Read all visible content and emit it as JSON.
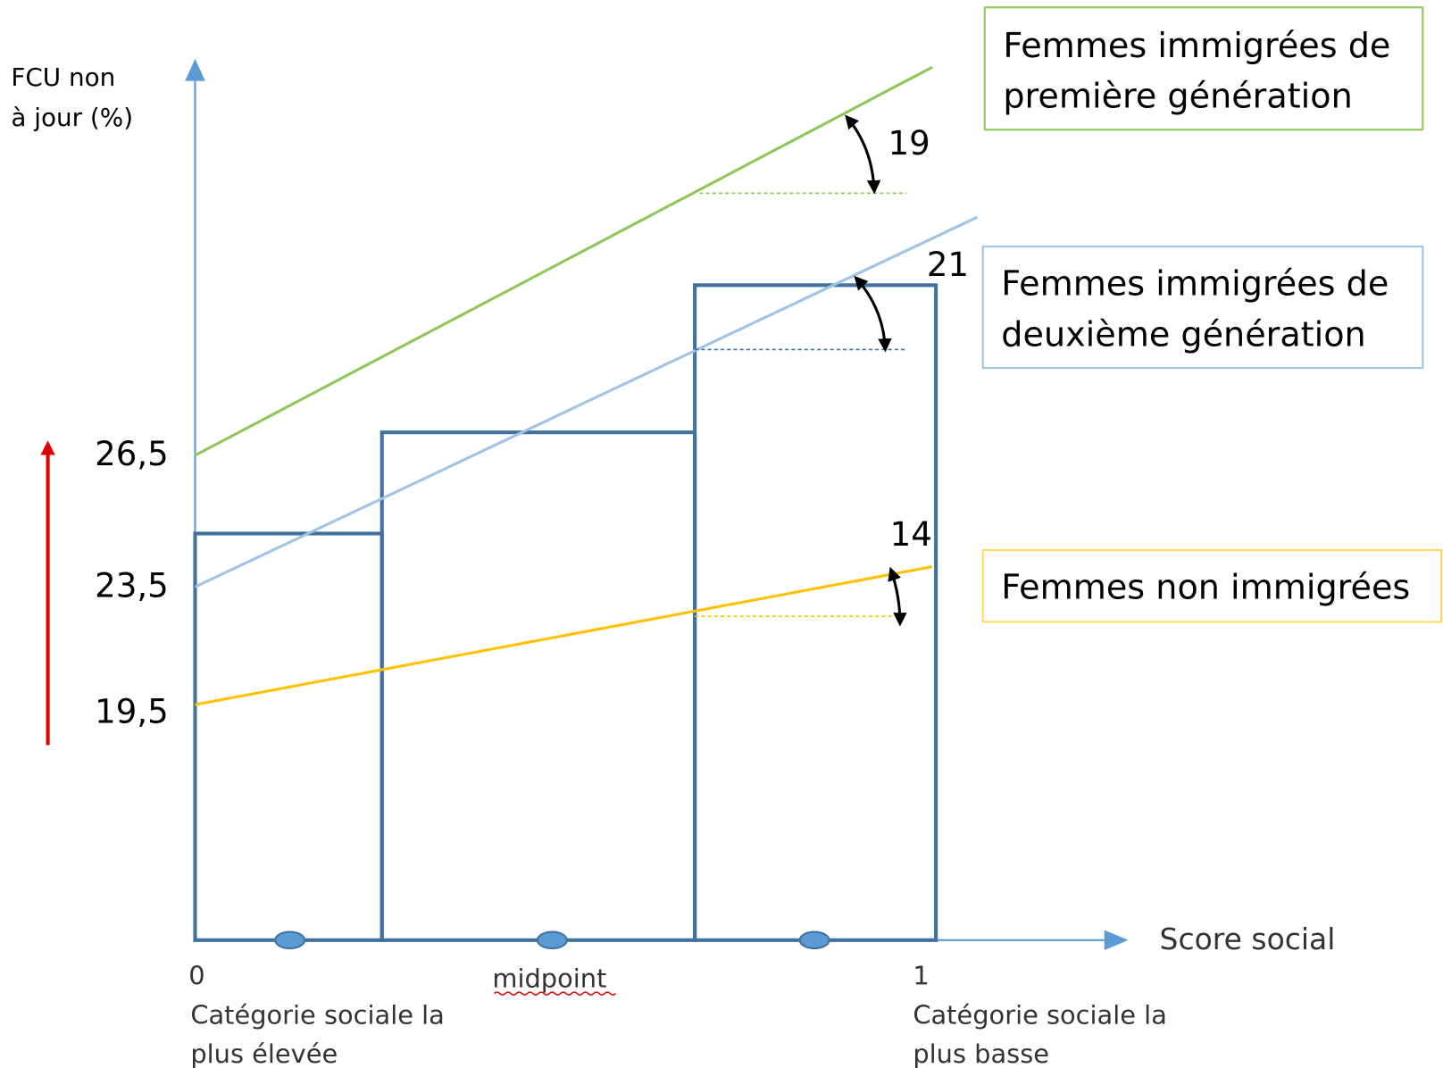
{
  "y_axis": {
    "label_lines": [
      "FCU non",
      "à jour (%)"
    ],
    "values": [
      "26,5",
      "23,5",
      "19,5"
    ]
  },
  "legend": [
    {
      "lines": [
        "Femmes immigrées de",
        "première génération"
      ]
    },
    {
      "lines": [
        "Femmes immigrées de",
        "deuxième génération"
      ]
    },
    {
      "lines": [
        "Femmes non immigrées"
      ]
    }
  ],
  "gaps": [
    "19",
    "21",
    "14"
  ],
  "x_axis": {
    "label": "Score social",
    "start": {
      "value": "0",
      "lines": [
        "Catégorie sociale la",
        "plus élevée"
      ]
    },
    "middle": "midpoint",
    "end": {
      "value": "1",
      "lines": [
        "Catégorie sociale la",
        "plus basse"
      ]
    }
  }
}
